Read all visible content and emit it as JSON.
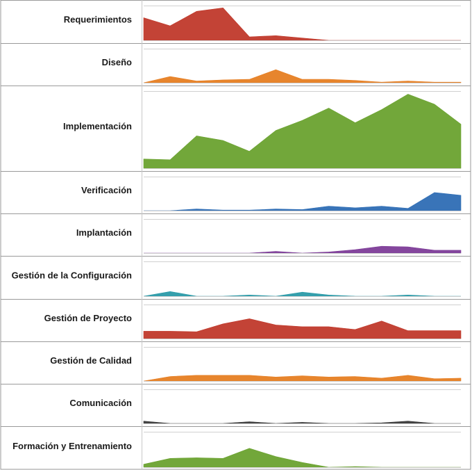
{
  "chart_data": {
    "type": "area",
    "x": [
      1,
      2,
      3,
      4,
      5,
      6,
      7,
      8,
      9,
      10,
      11,
      12,
      13
    ],
    "grid": true,
    "legend": "none",
    "series": [
      {
        "name": "Requerimientos",
        "color": "#c0392b",
        "ymax": 60,
        "values": [
          39,
          25,
          50,
          56,
          6,
          8,
          4,
          0,
          0,
          0,
          0,
          0,
          0
        ]
      },
      {
        "name": "Diseño",
        "color": "#e67e22",
        "ymax": 60,
        "values": [
          0,
          11,
          3,
          5,
          6,
          23,
          6,
          6,
          4,
          1,
          3,
          1,
          1
        ]
      },
      {
        "name": "Implementación",
        "color": "#6aa22f",
        "ymax": 100,
        "values": [
          12,
          11,
          42,
          36,
          22,
          49,
          62,
          78,
          59,
          76,
          96,
          83,
          57
        ]
      },
      {
        "name": "Verificación",
        "color": "#2e6db4",
        "ymax": 60,
        "values": [
          0,
          0,
          3,
          1,
          1,
          3,
          2,
          8,
          5,
          8,
          4,
          32,
          27
        ]
      },
      {
        "name": "Implantación",
        "color": "#7d3c98",
        "ymax": 60,
        "values": [
          0,
          0,
          0,
          0,
          0,
          3,
          0,
          2,
          6,
          12,
          11,
          5,
          5
        ]
      },
      {
        "name": "Gestión de la Configuración",
        "color": "#2a9aa8",
        "ymax": 60,
        "values": [
          0,
          8,
          0,
          0,
          2,
          0,
          7,
          2,
          0,
          0,
          2,
          0,
          0
        ]
      },
      {
        "name": "Gestión de Proyecto",
        "color": "#c0392b",
        "ymax": 60,
        "values": [
          13,
          13,
          12,
          26,
          35,
          24,
          21,
          21,
          16,
          31,
          14,
          14,
          14
        ]
      },
      {
        "name": "Gestión de Calidad",
        "color": "#e67e22",
        "ymax": 60,
        "values": [
          0,
          8,
          10,
          10,
          10,
          7,
          9,
          7,
          8,
          5,
          10,
          4,
          5
        ]
      },
      {
        "name": "Comunicación",
        "color": "#3a3a3a",
        "ymax": 60,
        "values": [
          4,
          0,
          0,
          0,
          3,
          0,
          2,
          0,
          0,
          1,
          4,
          0,
          0
        ]
      },
      {
        "name": "Formación y Entrenamiento",
        "color": "#6aa22f",
        "ymax": 60,
        "values": [
          5,
          15,
          16,
          15,
          32,
          18,
          8,
          0,
          1,
          0,
          0,
          0,
          0
        ]
      }
    ]
  }
}
